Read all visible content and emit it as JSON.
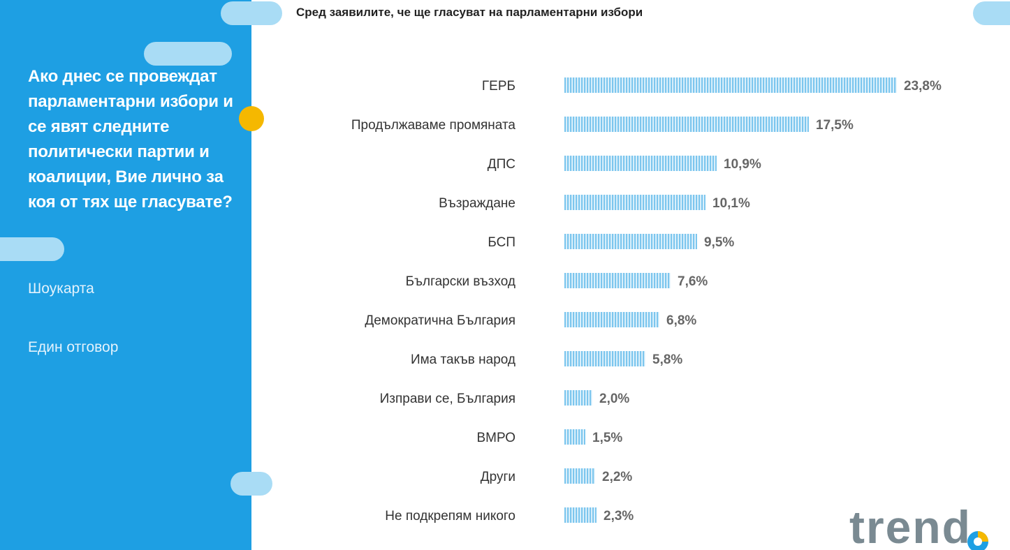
{
  "sidebar": {
    "question": "Ако днес се провеждат парламентарни избори и се явят следните политически партии и коалиции, Вие лично за коя от тях ще гласувате?",
    "showcard": "Шоукарта",
    "answer_type": "Един отговор"
  },
  "header": {
    "subtitle": "Сред заявилите, че ще гласуват на парламентарни избори"
  },
  "brand": {
    "logo_text": "trend"
  },
  "colors": {
    "sidebar": "#1e9fe3",
    "bar": "#7cc6ee",
    "accent_dot": "#f5b800",
    "pill": "#a9dcf5"
  },
  "chart_data": {
    "type": "bar",
    "orientation": "horizontal",
    "title": "Сред заявилите, че ще гласуват на парламентарни избори",
    "categories": [
      "ГЕРБ",
      "Продължаваме промяната",
      "ДПС",
      "Възраждане",
      "БСП",
      "Български възход",
      "Демократична България",
      "Има такъв народ",
      "Изправи се, България",
      "ВМРО",
      "Други",
      "Не подкрепям никого"
    ],
    "values": [
      23.8,
      17.5,
      10.9,
      10.1,
      9.5,
      7.6,
      6.8,
      5.8,
      2.0,
      1.5,
      2.2,
      2.3
    ],
    "value_labels": [
      "23,8%",
      "17,5%",
      "10,9%",
      "10,1%",
      "9,5%",
      "7,6%",
      "6,8%",
      "5,8%",
      "2,0%",
      "1,5%",
      "2,2%",
      "2,3%"
    ],
    "unit": "%",
    "xlim": [
      0,
      23.8
    ],
    "xlabel": "",
    "ylabel": "",
    "grid": false,
    "legend": "none"
  }
}
